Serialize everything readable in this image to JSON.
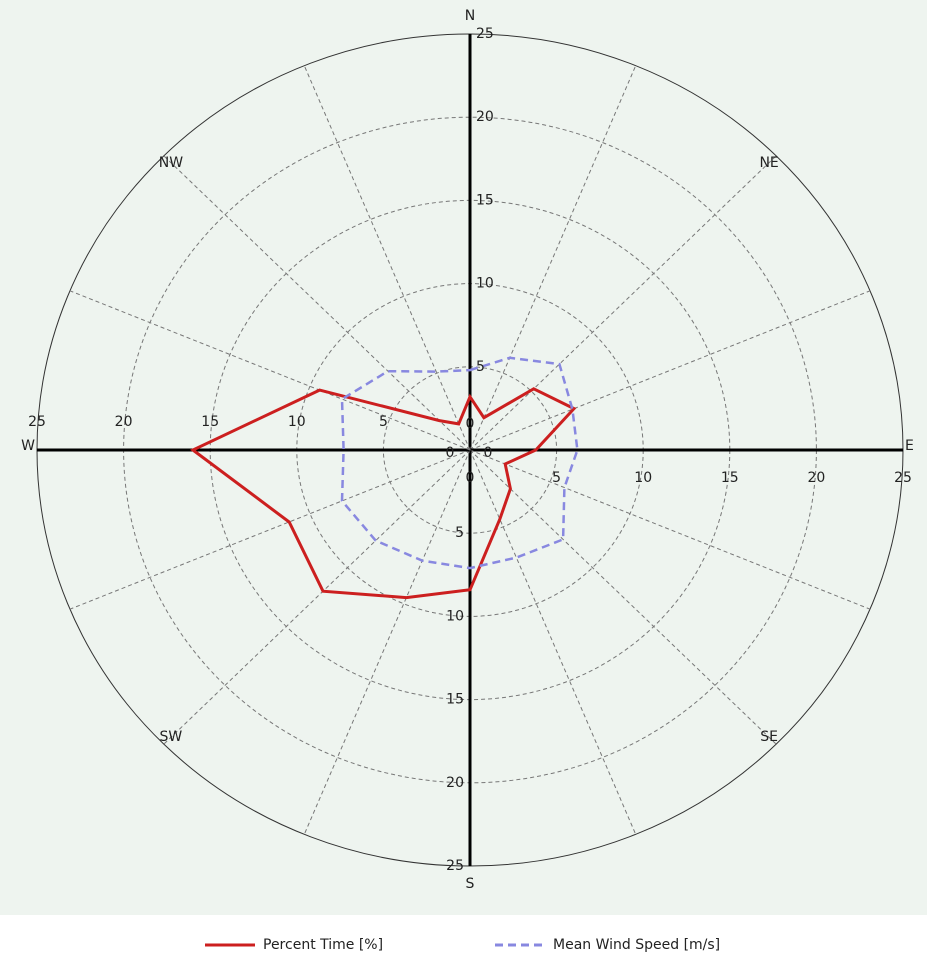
{
  "chart_data": {
    "type": "radar",
    "categories": [
      "N",
      null,
      "NE",
      null,
      "E",
      null,
      "SE",
      null,
      "S",
      null,
      "SW",
      null,
      "W",
      null,
      "NW",
      null
    ],
    "rlim": [
      0,
      25
    ],
    "rticks": [
      0,
      5,
      10,
      15,
      20,
      25
    ],
    "grid": true,
    "legend": "bottom",
    "series": [
      {
        "name": "Percent Time [%]",
        "color": "#cc1f1f",
        "line_style": "solid",
        "values": [
          3.2,
          2.1,
          5.2,
          6.5,
          3.8,
          2.2,
          3.3,
          4.5,
          8.4,
          9.6,
          12,
          11.3,
          16,
          9.4,
          2.5,
          1.7
        ]
      },
      {
        "name": "Mean Wind Speed [m/s]",
        "color": "#8888e0",
        "line_style": "dashed",
        "values": [
          4.8,
          6.0,
          7.3,
          6.4,
          6.2,
          5.9,
          7.6,
          7.0,
          7.1,
          7.2,
          7.7,
          8.0,
          7.3,
          8.0,
          6.7,
          5.1
        ]
      }
    ]
  }
}
